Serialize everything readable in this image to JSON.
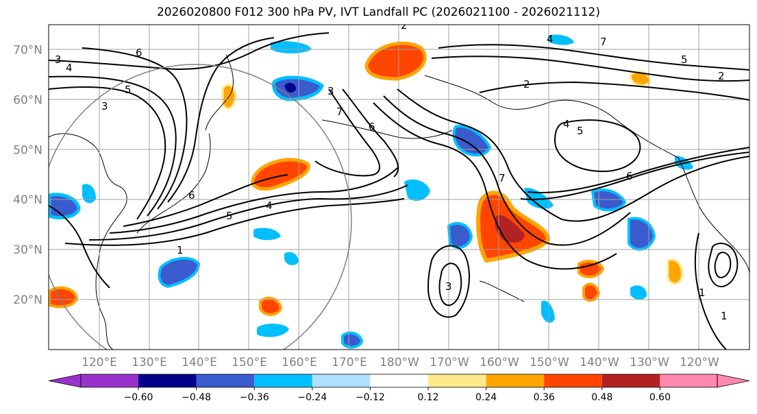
{
  "title": "2026020800 F012 300 hPa PV, IVT Landfall PC (2026021100 - 2026021112)",
  "map": {
    "lat_labels": [
      "70°N",
      "60°N",
      "50°N",
      "40°N",
      "30°N",
      "20°N"
    ],
    "lat_values": [
      70,
      60,
      50,
      40,
      30,
      20
    ],
    "lon_labels": [
      "120°E",
      "130°E",
      "140°E",
      "150°E",
      "160°E",
      "170°E",
      "180°W",
      "170°W",
      "160°W",
      "150°W",
      "140°W",
      "130°W",
      "120°W"
    ],
    "lat_range": [
      10,
      75
    ],
    "gridline_color": "#a0a0a0",
    "contour_labels": [
      "1",
      "2",
      "3",
      "4",
      "5",
      "6",
      "7"
    ]
  },
  "colorbar": {
    "ticks": [
      "−0.60",
      "−0.48",
      "−0.36",
      "−0.24",
      "−0.12",
      "0.12",
      "0.24",
      "0.36",
      "0.48",
      "0.60"
    ],
    "colors": [
      "#9932cc",
      "#00008b",
      "#3a5bcd",
      "#00bfff",
      "#b0e0ff",
      "#ffffff",
      "#ffe98a",
      "#ffa500",
      "#ff4500",
      "#b22222",
      "#ff88b0"
    ]
  }
}
